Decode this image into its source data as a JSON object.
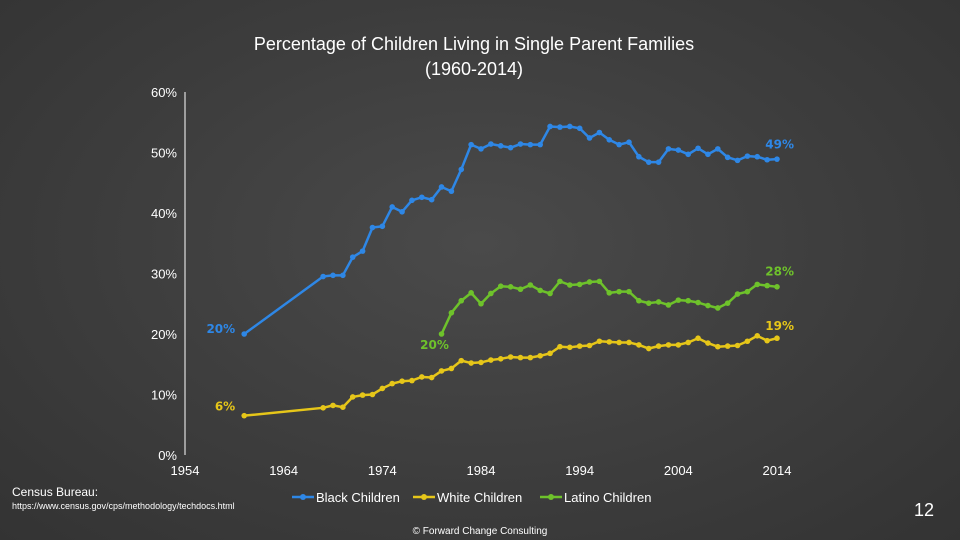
{
  "chart_data": {
    "type": "line",
    "title": "Percentage of Children Living in Single Parent Families",
    "subtitle": "(1960-2014)",
    "xlabel": "",
    "ylabel": "",
    "xlim": [
      1954,
      2014
    ],
    "ylim": [
      0,
      60
    ],
    "x_ticks": [
      1954,
      1964,
      1974,
      1984,
      1994,
      2004,
      2014
    ],
    "y_ticks": [
      0,
      10,
      20,
      30,
      40,
      50,
      60
    ],
    "y_tick_labels": [
      "0%",
      "10%",
      "20%",
      "30%",
      "40%",
      "50%",
      "60%"
    ],
    "grid": false,
    "legend_position": "bottom",
    "series": [
      {
        "name": "Black Children",
        "color": "#2e87e6",
        "x": [
          1960,
          1968,
          1969,
          1970,
          1971,
          1972,
          1973,
          1974,
          1975,
          1976,
          1977,
          1978,
          1979,
          1980,
          1981,
          1982,
          1983,
          1984,
          1985,
          1986,
          1987,
          1988,
          1989,
          1990,
          1991,
          1992,
          1993,
          1994,
          1995,
          1996,
          1997,
          1998,
          1999,
          2000,
          2001,
          2002,
          2003,
          2004,
          2005,
          2006,
          2007,
          2008,
          2009,
          2010,
          2011,
          2012,
          2013,
          2014
        ],
        "values": [
          20,
          29.5,
          29.7,
          29.7,
          32.7,
          33.7,
          37.6,
          37.8,
          41,
          40.2,
          42.1,
          42.6,
          42.2,
          44.3,
          43.6,
          47.2,
          51.3,
          50.6,
          51.4,
          51.1,
          50.8,
          51.4,
          51.3,
          51.3,
          54.3,
          54.2,
          54.3,
          54,
          52.4,
          53.3,
          52.1,
          51.3,
          51.7,
          49.3,
          48.4,
          48.4,
          50.6,
          50.4,
          49.7,
          50.7,
          49.7,
          50.6,
          49.2,
          48.7,
          49.4,
          49.3,
          48.8,
          48.9
        ],
        "data_labels": [
          {
            "x": 1960,
            "y": 20,
            "text": "20%"
          },
          {
            "x": 2014,
            "y": 49,
            "text": "49%"
          }
        ]
      },
      {
        "name": "White Children",
        "color": "#e6c619",
        "x": [
          1960,
          1968,
          1969,
          1970,
          1971,
          1972,
          1973,
          1974,
          1975,
          1976,
          1977,
          1978,
          1979,
          1980,
          1981,
          1982,
          1983,
          1984,
          1985,
          1986,
          1987,
          1988,
          1989,
          1990,
          1991,
          1992,
          1993,
          1994,
          1995,
          1996,
          1997,
          1998,
          1999,
          2000,
          2001,
          2002,
          2003,
          2004,
          2005,
          2006,
          2007,
          2008,
          2009,
          2010,
          2011,
          2012,
          2013,
          2014
        ],
        "values": [
          6.5,
          7.8,
          8.2,
          7.9,
          9.6,
          9.9,
          10,
          11,
          11.8,
          12.2,
          12.3,
          12.9,
          12.8,
          13.9,
          14.3,
          15.6,
          15.2,
          15.3,
          15.7,
          15.9,
          16.2,
          16.1,
          16.1,
          16.4,
          16.8,
          17.9,
          17.8,
          18,
          18.1,
          18.8,
          18.7,
          18.6,
          18.6,
          18.2,
          17.6,
          18,
          18.2,
          18.2,
          18.6,
          19.3,
          18.5,
          17.9,
          18,
          18.1,
          18.8,
          19.7,
          18.9,
          19.3
        ],
        "data_labels": [
          {
            "x": 1960,
            "y": 6.5,
            "text": "6%"
          },
          {
            "x": 2014,
            "y": 19,
            "text": "19%"
          }
        ]
      },
      {
        "name": "Latino Children",
        "color": "#6ec22b",
        "x": [
          1980,
          1981,
          1982,
          1983,
          1984,
          1985,
          1986,
          1987,
          1988,
          1989,
          1990,
          1991,
          1992,
          1993,
          1994,
          1995,
          1996,
          1997,
          1998,
          1999,
          2000,
          2001,
          2002,
          2003,
          2004,
          2005,
          2006,
          2007,
          2008,
          2009,
          2010,
          2011,
          2012,
          2013,
          2014
        ],
        "values": [
          20,
          23.5,
          25.5,
          26.8,
          25,
          26.7,
          27.9,
          27.8,
          27.4,
          28.1,
          27.2,
          26.7,
          28.7,
          28.1,
          28.2,
          28.6,
          28.7,
          26.8,
          27,
          27,
          25.5,
          25.1,
          25.3,
          24.8,
          25.6,
          25.5,
          25.2,
          24.7,
          24.3,
          25.1,
          26.6,
          27,
          28.2,
          28,
          27.8
        ],
        "data_labels": [
          {
            "x": 1980,
            "y": 20,
            "text": "20%"
          },
          {
            "x": 2014,
            "y": 28,
            "text": "28%"
          }
        ]
      }
    ]
  },
  "source": {
    "label": "Census Bureau:",
    "url": "https://www.census.gov/cps/methodology/techdocs.html"
  },
  "page_number": "12",
  "copyright": "© Forward Change Consulting"
}
